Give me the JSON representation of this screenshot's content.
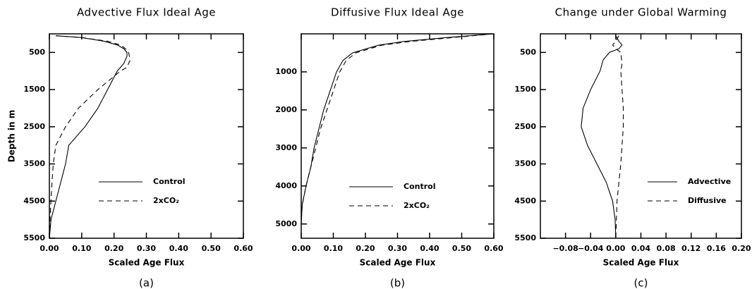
{
  "chart_data": [
    {
      "type": "line",
      "title": "Advective Flux Ideal Age",
      "xlabel": "Scaled Age Flux",
      "ylabel": "Depth in m",
      "caption": "(a)",
      "xlim": [
        0,
        0.6
      ],
      "xticks": [
        {
          "value": 0,
          "label": "0.00"
        },
        {
          "value": 0.1,
          "label": "0.10"
        },
        {
          "value": 0.2,
          "label": "0.20"
        },
        {
          "value": 0.3,
          "label": "0.30"
        },
        {
          "value": 0.4,
          "label": "0.40"
        },
        {
          "value": 0.5,
          "label": "0.50"
        },
        {
          "value": 0.6,
          "label": "0.60"
        }
      ],
      "ylim": [
        0,
        5500
      ],
      "yticks": [
        500,
        1500,
        2500,
        3500,
        4500,
        5500
      ],
      "y_inverted": true,
      "legend": "lower right",
      "series": [
        {
          "name": "Control",
          "color": "#000000",
          "dash": false,
          "depth": [
            50,
            100,
            200,
            300,
            400,
            500,
            600,
            800,
            1000,
            1500,
            2000,
            2500,
            3000,
            3500,
            4000,
            4500,
            5000,
            5500
          ],
          "values": [
            0.02,
            0.1,
            0.17,
            0.21,
            0.23,
            0.24,
            0.24,
            0.23,
            0.21,
            0.18,
            0.15,
            0.11,
            0.06,
            0.05,
            0.035,
            0.02,
            0.005,
            0
          ]
        },
        {
          "name": "2xCO₂",
          "color": "#000000",
          "dash": true,
          "depth": [
            50,
            100,
            200,
            300,
            400,
            500,
            700,
            900,
            1000,
            1500,
            2000,
            2500,
            3000,
            3500,
            4000,
            4500,
            5000,
            5500
          ],
          "values": [
            0.02,
            0.1,
            0.18,
            0.22,
            0.235,
            0.245,
            0.25,
            0.24,
            0.22,
            0.15,
            0.09,
            0.05,
            0.02,
            0.012,
            0.008,
            0.005,
            0.002,
            0
          ]
        }
      ]
    },
    {
      "type": "line",
      "title": "Diffusive Flux Ideal Age",
      "xlabel": "Scaled Age Flux",
      "caption": "(b)",
      "xlim": [
        0,
        0.6
      ],
      "xticks": [
        {
          "value": 0,
          "label": "0.00"
        },
        {
          "value": 0.1,
          "label": "0.10"
        },
        {
          "value": 0.2,
          "label": "0.20"
        },
        {
          "value": 0.3,
          "label": "0.30"
        },
        {
          "value": 0.4,
          "label": "0.40"
        },
        {
          "value": 0.5,
          "label": "0.50"
        },
        {
          "value": 0.6,
          "label": "0.60"
        }
      ],
      "ylim": [
        0,
        5375
      ],
      "yticks": [
        1000,
        2000,
        3000,
        4000,
        5000
      ],
      "y_inverted": true,
      "legend": "lower right",
      "series": [
        {
          "name": "Control",
          "color": "#000000",
          "dash": false,
          "depth": [
            0,
            100,
            200,
            300,
            500,
            700,
            1000,
            1500,
            2000,
            2500,
            3000,
            3500,
            4000,
            4500,
            5000
          ],
          "values": [
            0.6,
            0.45,
            0.32,
            0.24,
            0.16,
            0.13,
            0.11,
            0.09,
            0.07,
            0.055,
            0.04,
            0.03,
            0.015,
            0.003,
            0
          ]
        },
        {
          "name": "2xCO₂",
          "color": "#000000",
          "dash": true,
          "depth": [
            0,
            100,
            200,
            300,
            500,
            700,
            1000,
            1500,
            2000,
            2500,
            3000,
            3500,
            4000,
            4500,
            5000
          ],
          "values": [
            0.6,
            0.47,
            0.34,
            0.25,
            0.17,
            0.14,
            0.12,
            0.1,
            0.08,
            0.06,
            0.045,
            0.03,
            0.015,
            0.003,
            0
          ]
        }
      ]
    },
    {
      "type": "line",
      "title": "Change under Global Warming",
      "xlabel": "Scaled Age Flux",
      "caption": "(c)",
      "xlim": [
        -0.12,
        0.2
      ],
      "xticks": [
        {
          "value": -0.08,
          "label": "−0.08"
        },
        {
          "value": -0.04,
          "label": "−0.04"
        },
        {
          "value": 0,
          "label": "0.00"
        },
        {
          "value": 0.04,
          "label": "0.04"
        },
        {
          "value": 0.08,
          "label": "0.08"
        },
        {
          "value": 0.12,
          "label": "0.12"
        },
        {
          "value": 0.16,
          "label": "0.16"
        },
        {
          "value": 0.2,
          "label": "0.20"
        }
      ],
      "ylim": [
        0,
        5500
      ],
      "yticks": [
        500,
        1500,
        2500,
        3500,
        4500,
        5500
      ],
      "y_inverted": true,
      "legend": "lower right",
      "series": [
        {
          "name": "Advective",
          "color": "#000000",
          "dash": false,
          "depth": [
            50,
            200,
            300,
            400,
            500,
            700,
            1000,
            1500,
            2000,
            2500,
            3000,
            3500,
            4000,
            4500,
            5000,
            5500
          ],
          "values": [
            0.0,
            0.005,
            0.01,
            0.005,
            -0.01,
            -0.02,
            -0.025,
            -0.04,
            -0.052,
            -0.055,
            -0.045,
            -0.03,
            -0.015,
            -0.005,
            -0.001,
            0
          ]
        },
        {
          "name": "Diffusive",
          "color": "#000000",
          "dash": true,
          "depth": [
            50,
            200,
            300,
            400,
            500,
            800,
            1000,
            1500,
            2000,
            2500,
            3000,
            3500,
            4000,
            4500,
            5000,
            5500
          ],
          "values": [
            0.005,
            0.0,
            -0.005,
            0.0,
            0.008,
            0.01,
            0.008,
            0.01,
            0.012,
            0.012,
            0.01,
            0.008,
            0.005,
            0.002,
            0.001,
            0
          ]
        }
      ]
    }
  ]
}
